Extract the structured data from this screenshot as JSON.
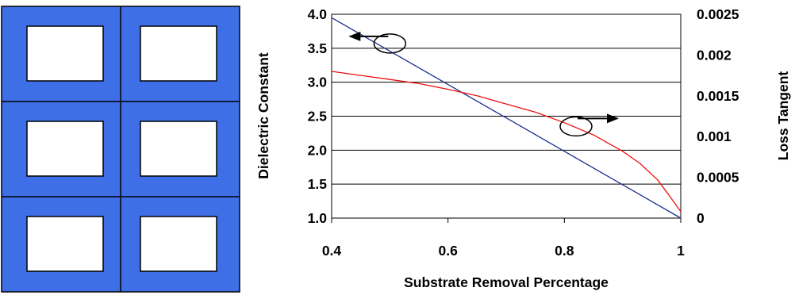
{
  "colors": {
    "substrate": "#3f6fe6",
    "dielectric_line": "#1c2f8c",
    "loss_line": "#ee1010",
    "grid": "#000000"
  },
  "schematic": {
    "grid": [
      3,
      2
    ],
    "fill": "blue",
    "cells": "white-rectangular-openings"
  },
  "chart_data": {
    "type": "line",
    "xlabel": "Substrate Removal Percentage",
    "ylabel": "Dielectric Constant",
    "y2label": "Loss Tangent",
    "xlim": [
      0.4,
      1.0
    ],
    "ylim": [
      1.0,
      4.0
    ],
    "y2lim": [
      0,
      0.0025
    ],
    "x_ticks": [
      "0.4",
      "0.6",
      "0.8",
      "1"
    ],
    "y_ticks": [
      "1.0",
      "1.5",
      "2.0",
      "2.5",
      "3.0",
      "3.5",
      "4.0"
    ],
    "y2_ticks": [
      "0",
      "0.0005",
      "0.001",
      "0.0015",
      "0.002",
      "0.0025"
    ],
    "grid": "horizontal",
    "series": [
      {
        "axis": "left",
        "color": "blue",
        "x": [
          0.4,
          1.0
        ],
        "y": [
          3.95,
          1.0
        ]
      },
      {
        "axis": "right",
        "color": "red",
        "x": [
          0.4,
          0.45,
          0.5,
          0.55,
          0.6,
          0.65,
          0.7,
          0.75,
          0.8,
          0.85,
          0.9,
          0.93,
          0.96,
          0.98,
          1.0
        ],
        "y": [
          0.0018,
          0.00175,
          0.0017,
          0.00165,
          0.00158,
          0.0015,
          0.0014,
          0.0013,
          0.00117,
          0.00102,
          0.00082,
          0.00067,
          0.00047,
          0.00028,
          8e-05
        ]
      }
    ],
    "annotations": [
      {
        "x": 0.5,
        "y": 3.57,
        "arrow": "left"
      },
      {
        "x": 0.82,
        "y": 2.35,
        "arrow": "right"
      }
    ]
  }
}
